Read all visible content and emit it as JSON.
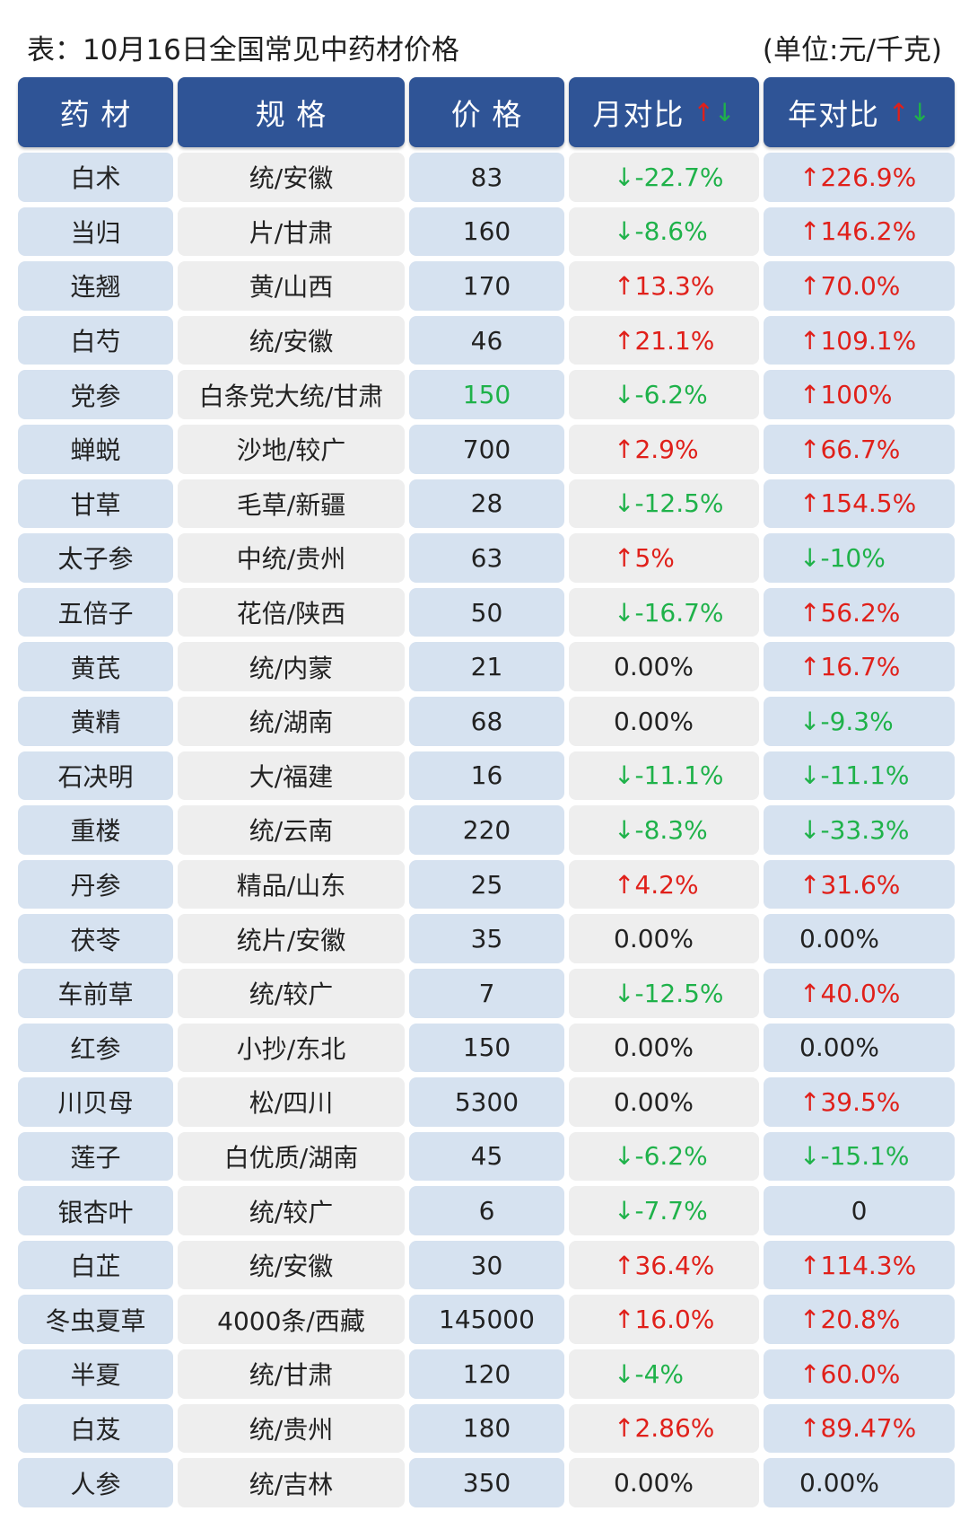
{
  "caption": {
    "title": "表：10月16日全国常见中药材价格",
    "unit": "(单位:元/千克)"
  },
  "headers": {
    "name": "药 材",
    "spec": "规 格",
    "price": "价 格",
    "month": "月对比",
    "year": "年对比",
    "up_arrow": "↑",
    "down_arrow": "↓"
  },
  "colors": {
    "header_bg": "#2f5496",
    "row_blue": "#d6e2f0",
    "row_gray": "#eeeeee",
    "up": "#e0201a",
    "down": "#1fb24a"
  },
  "rows": [
    {
      "name": "白术",
      "spec": "统/安徽",
      "price": "83",
      "month": "↓-22.7%",
      "month_trend": "down",
      "year": "↑226.9%",
      "year_trend": "up"
    },
    {
      "name": "当归",
      "spec": "片/甘肃",
      "price": "160",
      "month": "↓-8.6%",
      "month_trend": "down",
      "year": "↑146.2%",
      "year_trend": "up"
    },
    {
      "name": "连翘",
      "spec": "黄/山西",
      "price": "170",
      "month": "↑13.3%",
      "month_trend": "up",
      "year": "↑70.0%",
      "year_trend": "up"
    },
    {
      "name": "白芍",
      "spec": "统/安徽",
      "price": "46",
      "month": "↑21.1%",
      "month_trend": "up",
      "year": "↑109.1%",
      "year_trend": "up"
    },
    {
      "name": "党参",
      "spec": "白条党大统/甘肃",
      "price": "150",
      "price_color": "green",
      "month": "↓-6.2%",
      "month_trend": "down",
      "year": "↑100%",
      "year_trend": "up"
    },
    {
      "name": "蝉蜕",
      "spec": "沙地/较广",
      "price": "700",
      "month": "↑2.9%",
      "month_trend": "up",
      "year": "↑66.7%",
      "year_trend": "up"
    },
    {
      "name": "甘草",
      "spec": "毛草/新疆",
      "price": "28",
      "month": "↓-12.5%",
      "month_trend": "down",
      "year": "↑154.5%",
      "year_trend": "up"
    },
    {
      "name": "太子参",
      "spec": "中统/贵州",
      "price": "63",
      "month": "↑5%",
      "month_trend": "up",
      "year": "↓-10%",
      "year_trend": "down"
    },
    {
      "name": "五倍子",
      "spec": "花倍/陕西",
      "price": "50",
      "month": "↓-16.7%",
      "month_trend": "down",
      "year": "↑56.2%",
      "year_trend": "up"
    },
    {
      "name": "黄芪",
      "spec": "统/内蒙",
      "price": "21",
      "month": "0.00%",
      "month_trend": "flat",
      "year": "↑16.7%",
      "year_trend": "up"
    },
    {
      "name": "黄精",
      "spec": "统/湖南",
      "price": "68",
      "month": "0.00%",
      "month_trend": "flat",
      "year": "↓-9.3%",
      "year_trend": "down"
    },
    {
      "name": "石决明",
      "spec": "大/福建",
      "price": "16",
      "month": "↓-11.1%",
      "month_trend": "down",
      "year": "↓-11.1%",
      "year_trend": "down"
    },
    {
      "name": "重楼",
      "spec": "统/云南",
      "price": "220",
      "month": "↓-8.3%",
      "month_trend": "down",
      "year": "↓-33.3%",
      "year_trend": "down"
    },
    {
      "name": "丹参",
      "spec": "精品/山东",
      "price": "25",
      "month": "↑4.2%",
      "month_trend": "up",
      "year": "↑31.6%",
      "year_trend": "up"
    },
    {
      "name": "茯苓",
      "spec": "统片/安徽",
      "price": "35",
      "month": "0.00%",
      "month_trend": "flat",
      "year": "0.00%",
      "year_trend": "flat"
    },
    {
      "name": "车前草",
      "spec": "统/较广",
      "price": "7",
      "month": "↓-12.5%",
      "month_trend": "down",
      "year": "↑40.0%",
      "year_trend": "up"
    },
    {
      "name": "红参",
      "spec": "小抄/东北",
      "price": "150",
      "month": "0.00%",
      "month_trend": "flat",
      "year": "0.00%",
      "year_trend": "flat"
    },
    {
      "name": "川贝母",
      "spec": "松/四川",
      "price": "5300",
      "month": "0.00%",
      "month_trend": "flat",
      "year": "↑39.5%",
      "year_trend": "up"
    },
    {
      "name": "莲子",
      "spec": "白优质/湖南",
      "price": "45",
      "month": "↓-6.2%",
      "month_trend": "down",
      "year": "↓-15.1%",
      "year_trend": "down"
    },
    {
      "name": "银杏叶",
      "spec": "统/较广",
      "price": "6",
      "month": "↓-7.7%",
      "month_trend": "down",
      "year": "0",
      "year_trend": "flat",
      "year_center": true
    },
    {
      "name": "白芷",
      "spec": "统/安徽",
      "price": "30",
      "month": "↑36.4%",
      "month_trend": "up",
      "year": "↑114.3%",
      "year_trend": "up"
    },
    {
      "name": "冬虫夏草",
      "spec": "4000条/西藏",
      "price": "145000",
      "month": "↑16.0%",
      "month_trend": "up",
      "year": "↑20.8%",
      "year_trend": "up"
    },
    {
      "name": "半夏",
      "spec": "统/甘肃",
      "price": "120",
      "month": "↓-4%",
      "month_trend": "down",
      "year": "↑60.0%",
      "year_trend": "up"
    },
    {
      "name": "白芨",
      "spec": "统/贵州",
      "price": "180",
      "month": "↑2.86%",
      "month_trend": "up",
      "year": "↑89.47%",
      "year_trend": "up"
    },
    {
      "name": "人参",
      "spec": "统/吉林",
      "price": "350",
      "month": "0.00%",
      "month_trend": "flat",
      "year": "0.00%",
      "year_trend": "flat"
    }
  ]
}
